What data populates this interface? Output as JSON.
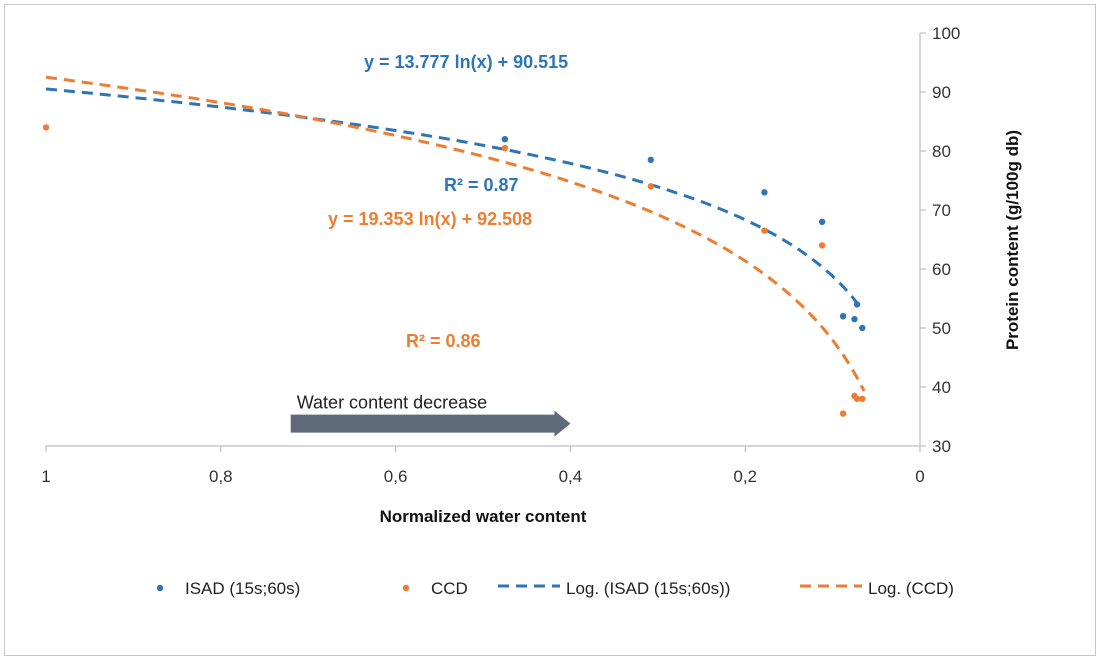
{
  "chart_data": {
    "type": "scatter",
    "title": "",
    "xlabel": "Normalized water content",
    "ylabel": "Protein content (g/100g db)",
    "xlim": [
      0,
      1
    ],
    "x_reversed": true,
    "ylim": [
      30,
      100
    ],
    "x_ticks": [
      1,
      0.8,
      0.6,
      0.4,
      0.2,
      0
    ],
    "x_tick_labels": [
      "1",
      "0,8",
      "0,6",
      "0,4",
      "0,2",
      "0"
    ],
    "y_ticks": [
      30,
      40,
      50,
      60,
      70,
      80,
      90,
      100
    ],
    "y_tick_labels": [
      "30",
      "40",
      "50",
      "60",
      "70",
      "80",
      "90",
      "100"
    ],
    "series": [
      {
        "name": "ISAD (15s;60s)",
        "color": "#2e75b6",
        "points": [
          {
            "x": 0.475,
            "y": 82.0
          },
          {
            "x": 0.308,
            "y": 78.5
          },
          {
            "x": 0.178,
            "y": 73.0
          },
          {
            "x": 0.112,
            "y": 68.0
          },
          {
            "x": 0.088,
            "y": 52.0
          },
          {
            "x": 0.075,
            "y": 51.5
          },
          {
            "x": 0.072,
            "y": 54.0
          },
          {
            "x": 0.066,
            "y": 50.0
          }
        ]
      },
      {
        "name": "CCD",
        "color": "#ed7d31",
        "points": [
          {
            "x": 1.0,
            "y": 84.0
          },
          {
            "x": 0.475,
            "y": 80.5
          },
          {
            "x": 0.308,
            "y": 74.0
          },
          {
            "x": 0.178,
            "y": 66.5
          },
          {
            "x": 0.112,
            "y": 64.0
          },
          {
            "x": 0.088,
            "y": 35.5
          },
          {
            "x": 0.075,
            "y": 38.5
          },
          {
            "x": 0.072,
            "y": 38.0
          },
          {
            "x": 0.066,
            "y": 38.0
          }
        ]
      }
    ],
    "trendlines": [
      {
        "name": "Log. (ISAD (15s;60s))",
        "type": "log",
        "a": 13.777,
        "b": 90.515,
        "x_range": [
          0.066,
          1.0
        ],
        "color": "#2e75b6",
        "equation": "y = 13.777 ln(x) + 90.515",
        "r2": "R² = 0.87"
      },
      {
        "name": "Log. (CCD)",
        "type": "log",
        "a": 19.353,
        "b": 92.508,
        "x_range": [
          0.064,
          1.0
        ],
        "color": "#ed7d31",
        "equation": "y = 19.353 ln(x) + 92.508",
        "r2": "R² = 0.86"
      }
    ],
    "annotation": {
      "text": "Water content decrease",
      "arrow_from_x": 0.72,
      "arrow_to_x": 0.4,
      "arrow_y": 33.8,
      "arrow_color": "#5f6b7a"
    },
    "legend": {
      "position": "bottom",
      "items": [
        {
          "label": "ISAD (15s;60s)",
          "kind": "marker",
          "color": "#2e75b6"
        },
        {
          "label": "CCD",
          "kind": "marker",
          "color": "#ed7d31"
        },
        {
          "label": "Log. (ISAD (15s;60s))",
          "kind": "dash",
          "color": "#2e75b6"
        },
        {
          "label": "Log. (CCD)",
          "kind": "dash",
          "color": "#ed7d31"
        }
      ]
    }
  }
}
